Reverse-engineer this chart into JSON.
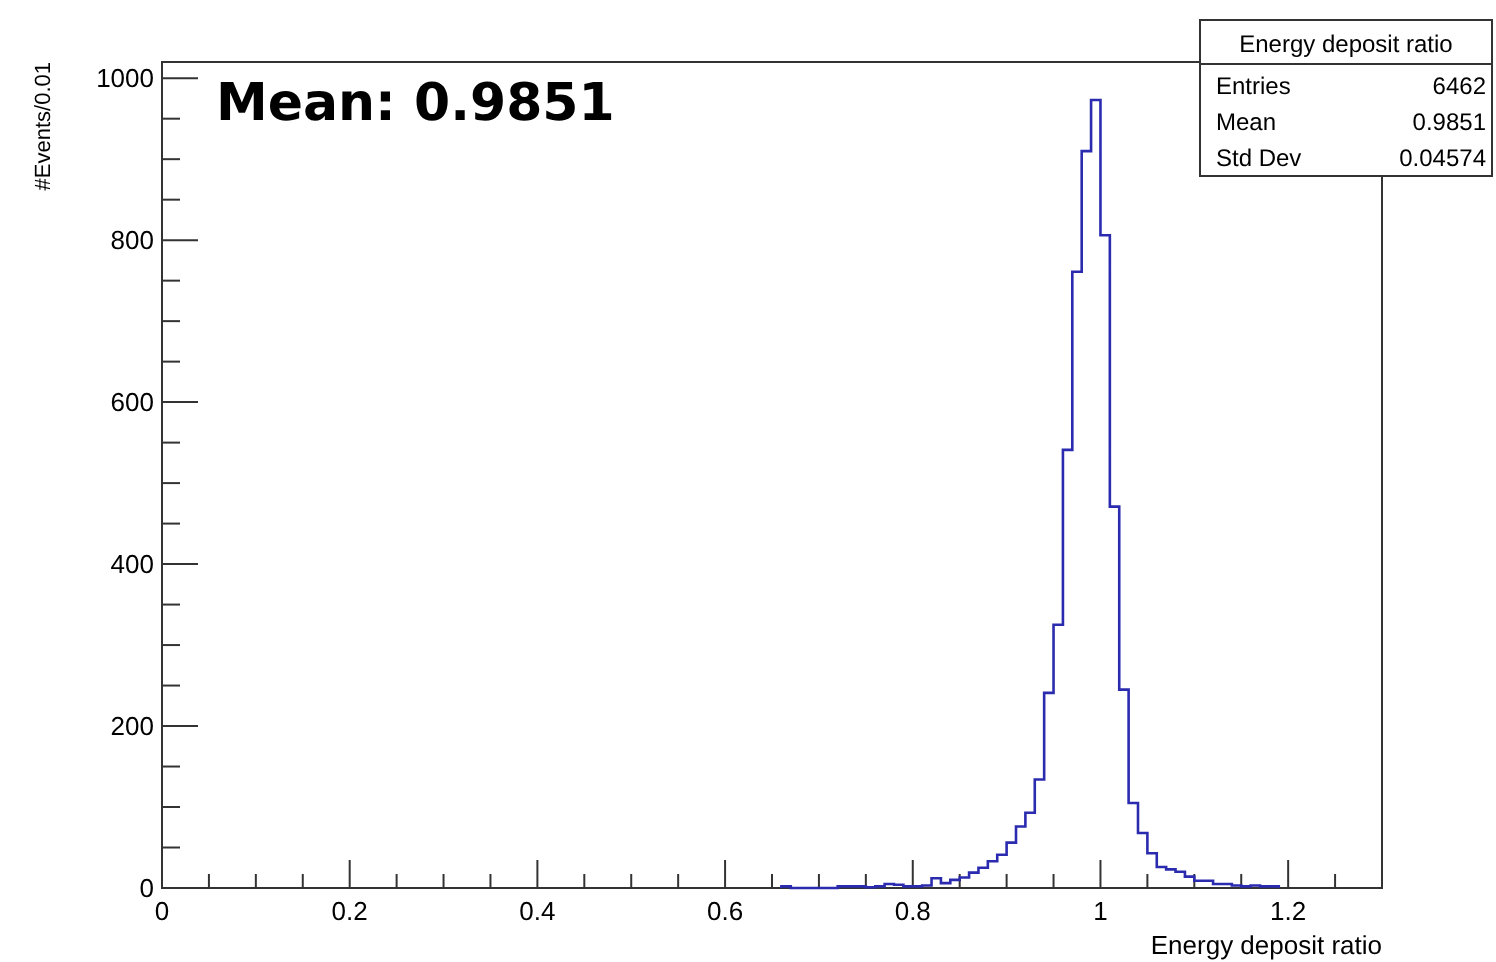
{
  "chart_data": {
    "type": "histogram",
    "title": "Energy deposit ratio",
    "xlabel": "Energy deposit ratio",
    "ylabel": "#Events/0.01",
    "annotations": [
      "Mean: 0.9851",
      "Entries",
      "6462",
      "Mean",
      "0.9851",
      "Std Dev",
      "0.04574"
    ],
    "bins": [
      0.66,
      0.67,
      0.68,
      0.69,
      0.7,
      0.71,
      0.72,
      0.73,
      0.74,
      0.75,
      0.76,
      0.77,
      0.78,
      0.79,
      0.8,
      0.81,
      0.82,
      0.83,
      0.84,
      0.85,
      0.86,
      0.87,
      0.88,
      0.89,
      0.9,
      0.91,
      0.92,
      0.93,
      0.94,
      0.95,
      0.96,
      0.97,
      0.98,
      0.99,
      1.0,
      1.01,
      1.02,
      1.03,
      1.04,
      1.05,
      1.06,
      1.07,
      1.08,
      1.09,
      1.1,
      1.11,
      1.12,
      1.13,
      1.14,
      1.15,
      1.16,
      1.17,
      1.18,
      1.19
    ],
    "values": [
      2,
      0,
      0,
      0,
      0,
      0,
      2,
      2,
      2,
      1,
      2,
      5,
      4,
      2,
      2,
      3,
      12,
      6,
      10,
      13,
      19,
      25,
      33,
      41,
      56,
      76,
      93,
      134,
      241,
      325,
      541,
      761,
      910,
      973,
      806,
      471,
      245,
      105,
      68,
      43,
      26,
      23,
      20,
      14,
      9,
      9,
      5,
      5,
      3,
      2,
      3,
      2,
      2
    ],
    "color": "#2b2bb0",
    "xlim": [
      0,
      1.3
    ],
    "ylim": [
      0,
      1020
    ],
    "xticks": [
      0,
      {
        "value": 0.05,
        "label": null
      },
      {
        "value": 0.1,
        "label": null
      },
      {
        "value": 0.15,
        "label": null
      },
      0.2,
      {
        "value": 0.25,
        "label": null
      },
      {
        "value": 0.3,
        "label": null
      },
      {
        "value": 0.35,
        "label": null
      },
      0.4,
      {
        "value": 0.45,
        "label": null
      },
      {
        "value": 0.5,
        "label": null
      },
      {
        "value": 0.55,
        "label": null
      },
      0.6,
      {
        "value": 0.65,
        "label": null
      },
      {
        "value": 0.7,
        "label": null
      },
      {
        "value": 0.75,
        "label": null
      },
      0.8,
      {
        "value": 0.85,
        "label": null
      },
      {
        "value": 0.9,
        "label": null
      },
      {
        "value": 0.95,
        "label": null
      },
      1,
      {
        "value": 1.05,
        "label": null
      },
      {
        "value": 1.1,
        "label": null
      },
      {
        "value": 1.15,
        "label": null
      },
      1.2,
      {
        "value": 1.25,
        "label": null
      }
    ],
    "yticks": [
      0,
      {
        "value": 50,
        "label": null
      },
      {
        "value": 100,
        "label": null
      },
      {
        "value": 150,
        "label": null
      },
      200,
      {
        "value": 250,
        "label": null
      },
      {
        "value": 300,
        "label": null
      },
      {
        "value": 350,
        "label": null
      },
      400,
      {
        "value": 450,
        "label": null
      },
      {
        "value": 500,
        "label": null
      },
      {
        "value": 550,
        "label": null
      },
      600,
      {
        "value": 650,
        "label": null
      },
      {
        "value": 700,
        "label": null
      },
      {
        "value": 750,
        "label": null
      },
      800,
      {
        "value": 850,
        "label": null
      },
      {
        "value": 900,
        "label": null
      },
      {
        "value": 950,
        "label": null
      },
      1000
    ],
    "grid": false
  }
}
